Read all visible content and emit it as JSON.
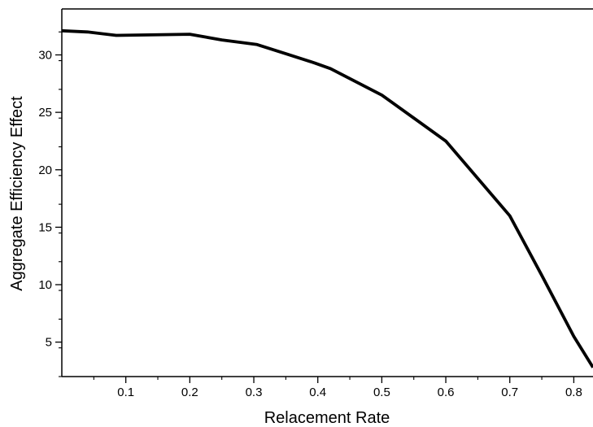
{
  "chart_data": {
    "type": "line",
    "title": "",
    "xlabel": "Relacement Rate",
    "ylabel": "Aggregate Efficiency Effect",
    "xlim": [
      0.0,
      0.83
    ],
    "ylim": [
      2.0,
      34.0
    ],
    "xticks": [
      0.1,
      0.2,
      0.3,
      0.4,
      0.5,
      0.6,
      0.7,
      0.8
    ],
    "xtick_labels": [
      "0.1",
      "0.2",
      "0.3",
      "0.4",
      "0.5",
      "0.6",
      "0.7",
      "0.8"
    ],
    "yticks": [
      5,
      10,
      15,
      20,
      25,
      30
    ],
    "ytick_labels": [
      "5",
      "10",
      "15",
      "20",
      "25",
      "30"
    ],
    "grid": false,
    "legend": "none",
    "line_color": "#000000",
    "series": [
      {
        "x": [
          0.0,
          0.04,
          0.085,
          0.2,
          0.25,
          0.305,
          0.35,
          0.395,
          0.42,
          0.5,
          0.6,
          0.7,
          0.75,
          0.8,
          0.83
        ],
        "y": [
          32.1,
          32.0,
          31.7,
          31.8,
          31.3,
          30.9,
          30.1,
          29.3,
          28.8,
          26.5,
          22.5,
          16.0,
          10.8,
          5.5,
          2.8
        ]
      }
    ]
  }
}
